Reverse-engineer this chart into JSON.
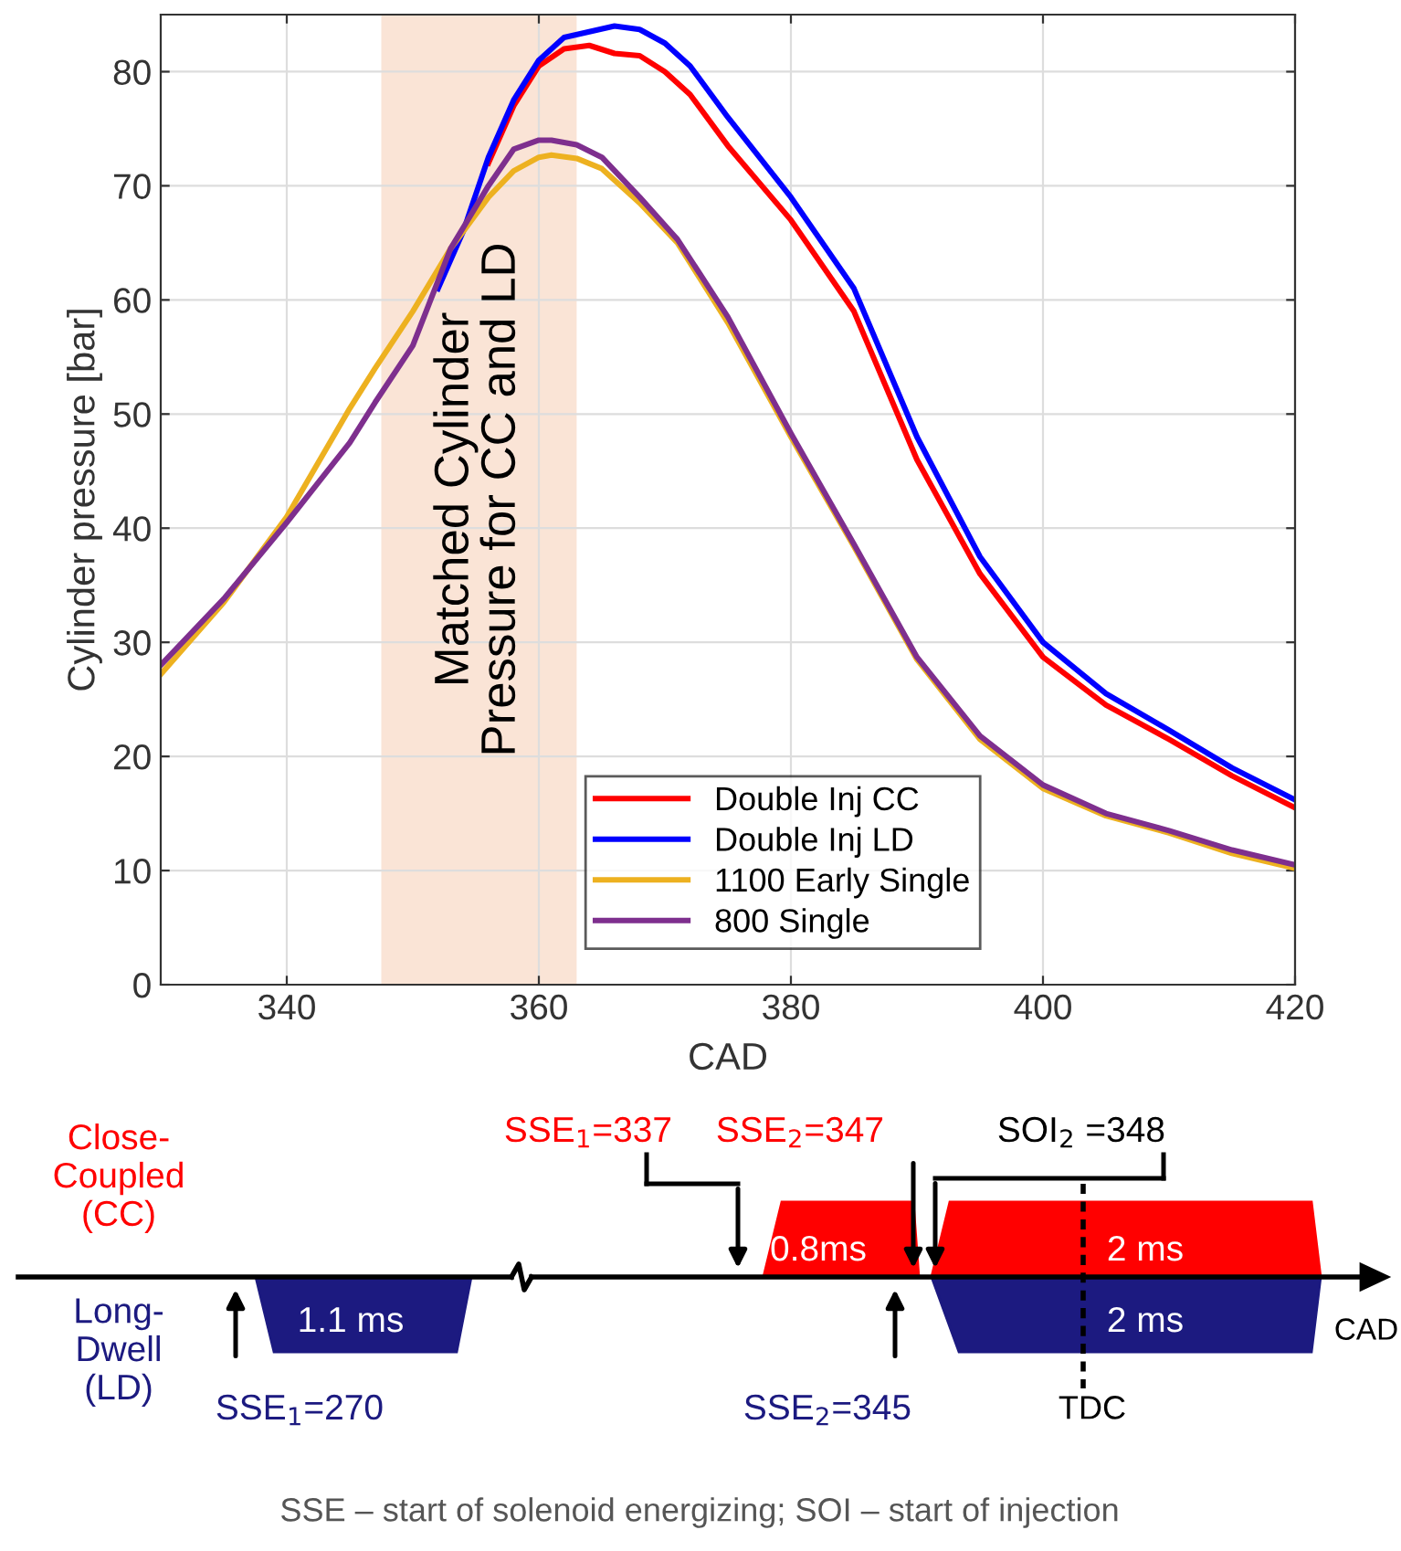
{
  "chart_data": [
    {
      "type": "line",
      "xlabel": "CAD",
      "ylabel": "Cylinder pressure [bar]",
      "xlim": [
        330,
        420
      ],
      "xticks": [
        340,
        360,
        380,
        400,
        420
      ],
      "ylim": [
        0,
        85
      ],
      "yticks": [
        0,
        10,
        20,
        30,
        40,
        50,
        60,
        70,
        80
      ],
      "grid": true,
      "legend": "bottom",
      "line_style": "solid",
      "marker": "none",
      "bands": [
        {
          "axis": "x",
          "from": 347.5,
          "to": 363,
          "label": "Matched Cylinder\nPressure for CC and LD",
          "color": "#fae4d6"
        }
      ],
      "series": [
        {
          "name": "Double Inj CC",
          "color": "#ff0000",
          "x": [
            356,
            358,
            360,
            362,
            364,
            366,
            368,
            370,
            372,
            375,
            380,
            385,
            390,
            395,
            400,
            405,
            410,
            415,
            420
          ],
          "values": [
            72,
            77,
            80.5,
            82,
            82.3,
            81.6,
            81.4,
            80,
            78,
            73.5,
            67,
            59,
            46,
            36,
            28.7,
            24.5,
            21.5,
            18.3,
            15.5
          ]
        },
        {
          "name": "Double Inj LD",
          "color": "#0000ff",
          "x": [
            352,
            354,
            356,
            358,
            360,
            362,
            364,
            366,
            368,
            370,
            372,
            375,
            380,
            385,
            390,
            395,
            400,
            405,
            410,
            415,
            420
          ],
          "values": [
            61,
            66,
            72.5,
            77.5,
            81,
            83,
            83.5,
            84,
            83.7,
            82.5,
            80.5,
            76,
            69,
            61,
            48,
            37.5,
            30,
            25.5,
            22.3,
            19,
            16.2
          ]
        },
        {
          "name": "1100 Early Single",
          "color": "#edb120",
          "x": [
            330,
            335,
            340,
            345,
            347,
            350,
            353,
            356,
            358,
            360,
            361,
            363,
            365,
            368,
            371,
            375,
            380,
            385,
            390,
            395,
            400,
            405,
            410,
            415,
            420
          ],
          "values": [
            27.2,
            33.5,
            41,
            50.5,
            54,
            59,
            64.5,
            69,
            71.3,
            72.5,
            72.7,
            72.4,
            71.5,
            68.5,
            65,
            58,
            48,
            38.4,
            28.5,
            21.5,
            17.2,
            14.8,
            13.3,
            11.5,
            10.2
          ]
        },
        {
          "name": "800 Single",
          "color": "#7e2f8e",
          "x": [
            330,
            335,
            340,
            345,
            347,
            350,
            353,
            356,
            358,
            360,
            361,
            363,
            365,
            368,
            371,
            375,
            380,
            385,
            390,
            395,
            400,
            405,
            410,
            415,
            420
          ],
          "values": [
            28,
            33.8,
            40.5,
            47.5,
            51,
            56,
            64.5,
            70,
            73.2,
            74,
            74,
            73.6,
            72.5,
            69,
            65.3,
            58.5,
            48.3,
            38.6,
            28.7,
            21.8,
            17.5,
            15,
            13.5,
            11.8,
            10.5
          ]
        }
      ]
    },
    {
      "type": "other",
      "annotations": [
        "Close-\nCoupled\n(CC)",
        "Long-\nDwell\n(LD)",
        "SSE$_{1}$=337",
        "SSE$_{2}$=347",
        "SOI$_{2}$ =348",
        "0.8ms",
        "2 ms",
        "1.1 ms",
        "2 ms",
        "CAD",
        "SSE$_{1}$=270",
        "SSE$_{2}$=345",
        "TDC",
        "SSE – start of solenoid energizing; SOI – start of injection"
      ]
    }
  ]
}
